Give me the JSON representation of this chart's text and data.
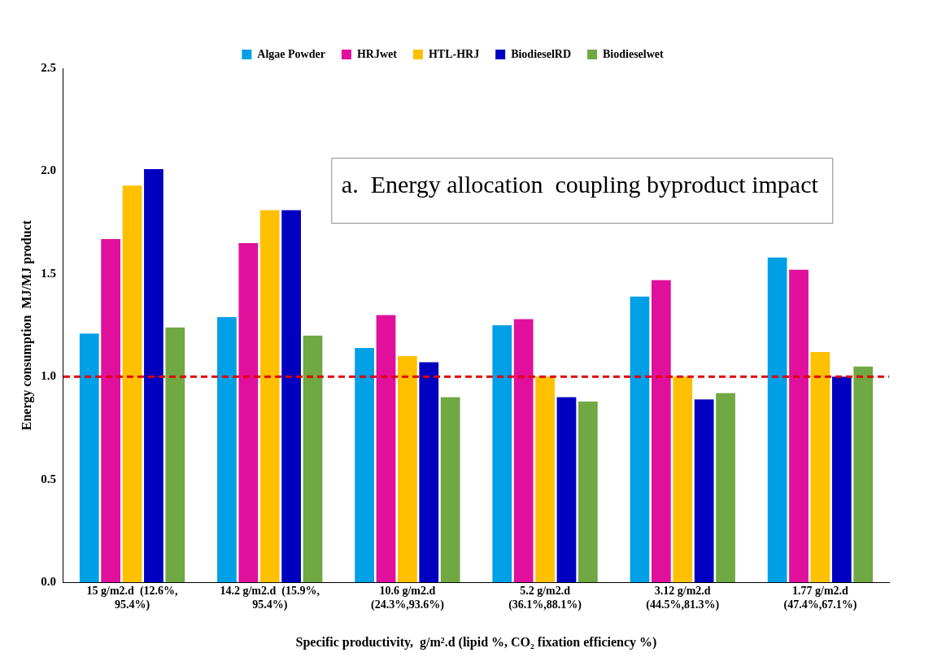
{
  "chart_data": {
    "type": "bar",
    "categories": [
      "15 g/m2.d  (12.6%,\n95.4%)",
      "14.2 g/m2.d  (15.9%,\n95.4%)",
      "10.6 g/m2.d\n(24.3%,93.6%)",
      "5.2 g/m2.d\n(36.1%,88.1%)",
      "3.12 g/m2.d\n(44.5%,81.3%)",
      "1.77 g/m2.d\n(47.4%,67.1%)"
    ],
    "series": [
      {
        "name": "Algae Powder",
        "color": "#00a0e6",
        "values": [
          1.21,
          1.29,
          1.14,
          1.25,
          1.39,
          1.58
        ]
      },
      {
        "name": "HRJwet",
        "color": "#e0109c",
        "values": [
          1.67,
          1.65,
          1.3,
          1.28,
          1.47,
          1.52
        ]
      },
      {
        "name": "HTL-HRJ",
        "color": "#ffc000",
        "values": [
          1.93,
          1.81,
          1.1,
          1.0,
          1.0,
          1.12
        ]
      },
      {
        "name": "BiodieselRD",
        "color": "#0000c0",
        "values": [
          2.01,
          1.81,
          1.07,
          0.9,
          0.89,
          1.0
        ]
      },
      {
        "name": "Biodieselwet",
        "color": "#70a844",
        "values": [
          1.24,
          1.2,
          0.9,
          0.88,
          0.92,
          1.05
        ]
      }
    ],
    "ylabel": "Energy consumption  MJ/MJ product",
    "xlabel": "Specific productivity,  g/m².d (lipid %, CO₂ fixation efficiency %)",
    "ylim": [
      0,
      2.5
    ],
    "yticks": [
      {
        "value": 0,
        "label": "0.0"
      },
      {
        "value": 0.5,
        "label": "0.5"
      },
      {
        "value": 1,
        "label": "1.0"
      },
      {
        "value": 1.5,
        "label": "1.5"
      },
      {
        "value": 2,
        "label": "2.0"
      },
      {
        "value": 2.5,
        "label": "2.5"
      }
    ],
    "ref_lines": [
      {
        "axis": "y",
        "value": 1,
        "color": "#e00000",
        "line_style": "dashed"
      }
    ],
    "annotations": [
      "a.  Energy allocation  coupling byproduct impact"
    ],
    "legend": "top",
    "grid": false
  }
}
